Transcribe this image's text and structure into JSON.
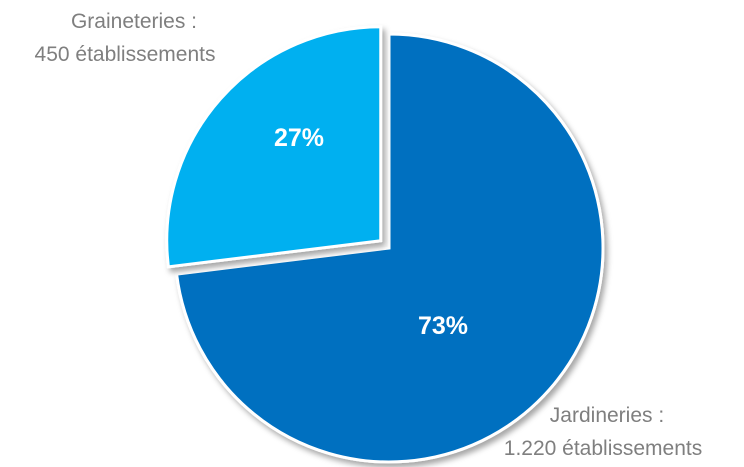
{
  "chart_data": {
    "type": "pie",
    "title": "",
    "slices": [
      {
        "category": "Jardineries",
        "value": 1220,
        "percent": 73,
        "label_line1": "Jardineries :",
        "label_line2": "1.220 établissements",
        "percent_label": "73%",
        "color": "#0070c0"
      },
      {
        "category": "Graineteries",
        "value": 450,
        "percent": 27,
        "label_line1": "Graineteries :",
        "label_line2": "450 établissements",
        "percent_label": "27%",
        "color": "#00b0f0",
        "exploded": true
      }
    ],
    "start_angle": "12 o'clock, clockwise",
    "legend": "none"
  }
}
